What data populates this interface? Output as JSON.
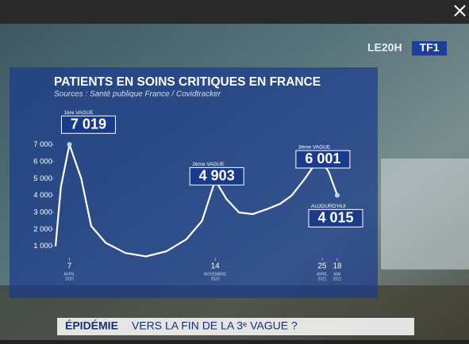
{
  "chart_data": {
    "type": "line",
    "title": "PATIENTS EN SOINS CRITIQUES EN FRANCE",
    "subtitle": "Sources : Santé publique France / Covidtracker",
    "x": [
      "2020-03-17",
      "2020-03-25",
      "2020-04-07",
      "2020-04-25",
      "2020-05-10",
      "2020-06-01",
      "2020-07-01",
      "2020-08-01",
      "2020-09-01",
      "2020-10-01",
      "2020-10-25",
      "2020-11-14",
      "2020-12-01",
      "2020-12-20",
      "2021-01-10",
      "2021-02-01",
      "2021-02-20",
      "2021-03-10",
      "2021-03-30",
      "2021-04-15",
      "2021-04-25",
      "2021-05-05",
      "2021-05-18"
    ],
    "values": [
      1000,
      4500,
      7019,
      5000,
      2200,
      1200,
      600,
      400,
      700,
      1400,
      2500,
      4903,
      3800,
      3000,
      2900,
      3200,
      3500,
      4000,
      5000,
      5900,
      6001,
      5400,
      4015
    ],
    "color": "#ffffff",
    "xlim": [
      "2020-03-17",
      "2021-05-18"
    ],
    "xticks": [
      {
        "value": "2020-04-07",
        "label": [
          "7",
          "AVRIL",
          "2020"
        ]
      },
      {
        "value": "2020-11-14",
        "label": [
          "14",
          "NOVEMBRE",
          "2020"
        ]
      },
      {
        "value": "2021-04-25",
        "label": [
          "25",
          "AVRIL",
          "2021"
        ]
      },
      {
        "value": "2021-05-18",
        "label": [
          "18",
          "MAI",
          "2021"
        ]
      }
    ],
    "ylim": [
      0,
      7500
    ],
    "yticks": [
      {
        "value": 1000,
        "label": "1 000"
      },
      {
        "value": 2000,
        "label": "2 000"
      },
      {
        "value": 3000,
        "label": "3 000"
      },
      {
        "value": 4000,
        "label": "4 000"
      },
      {
        "value": 5000,
        "label": "5 000"
      },
      {
        "value": 6000,
        "label": "6 000"
      },
      {
        "value": 7000,
        "label": "7 000"
      }
    ],
    "annotations": [
      {
        "text": "1ère VAGUE",
        "x": "2020-04-07",
        "y": 7019,
        "label": "7 019"
      },
      {
        "text": "2ème VAGUE",
        "x": "2020-11-14",
        "y": 4903,
        "label": "4 903"
      },
      {
        "text": "3ème VAGUE",
        "x": "2021-04-25",
        "y": 6001,
        "label": "6 001"
      },
      {
        "text": "AUJOURD'HUI",
        "x": "2021-05-18",
        "y": 4015,
        "label": "4 015"
      }
    ]
  },
  "logo": {
    "show": "LE20H",
    "channel": "TF1"
  },
  "banner": {
    "label": "ÉPIDÉMIE",
    "text": "VERS LA FIN DE LA 3ᵉ VAGUE ?"
  }
}
